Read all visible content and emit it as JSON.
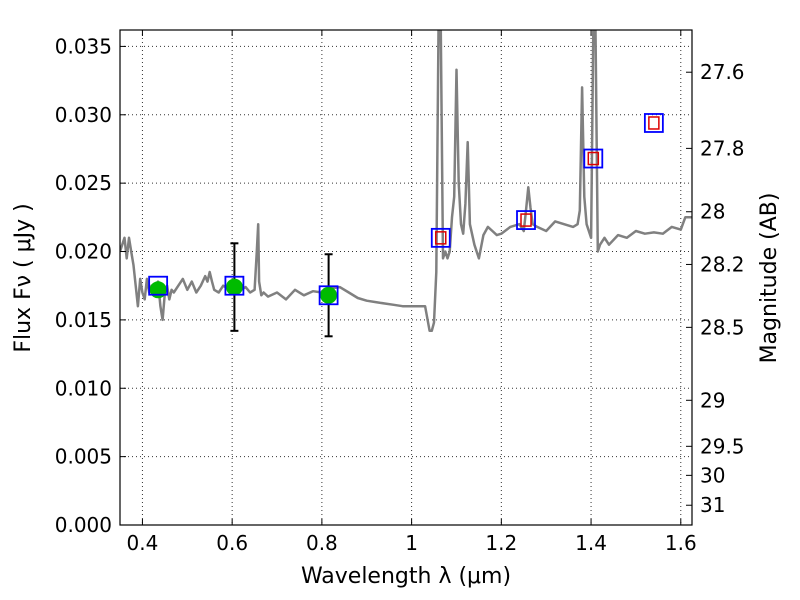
{
  "chart_data": {
    "type": "scatter",
    "xlabel": "Wavelength  λ (μm)",
    "ylabel": "Flux  Fν  ( μJy )",
    "y2label": "Magnitude (AB)",
    "xlim": [
      0.35,
      1.625
    ],
    "ylim": [
      0.0,
      0.0362
    ],
    "grid": true,
    "x_ticks": [
      "0.4",
      "0.6",
      "0.8",
      "1",
      "1.2",
      "1.4",
      "1.6"
    ],
    "x_tick_values": [
      0.4,
      0.6,
      0.8,
      1.0,
      1.2,
      1.4,
      1.6
    ],
    "y_ticks": [
      "0.000",
      "0.005",
      "0.010",
      "0.015",
      "0.020",
      "0.025",
      "0.030",
      "0.035"
    ],
    "y_tick_values": [
      0.0,
      0.005,
      0.01,
      0.015,
      0.02,
      0.025,
      0.03,
      0.035
    ],
    "mag_ticks": [
      "27.6",
      "27.8",
      "28",
      "28.2",
      "28.5",
      "29",
      "29.5",
      "30",
      "31"
    ],
    "mag_values": [
      27.6,
      27.8,
      28.0,
      28.2,
      28.5,
      29.0,
      29.5,
      30.0,
      31.0
    ],
    "colors": {
      "spectrum": "#808080",
      "observed_point": "#00bb00",
      "model_box": "#0000ff",
      "model_inner_box": "#dd0000"
    },
    "series": [
      {
        "name": "",
        "kind": "spectrum",
        "x": [
          0.35,
          0.36,
          0.365,
          0.37,
          0.375,
          0.38,
          0.385,
          0.39,
          0.395,
          0.4,
          0.405,
          0.41,
          0.415,
          0.42,
          0.425,
          0.43,
          0.435,
          0.44,
          0.445,
          0.45,
          0.455,
          0.46,
          0.465,
          0.47,
          0.48,
          0.49,
          0.5,
          0.51,
          0.52,
          0.53,
          0.54,
          0.545,
          0.55,
          0.555,
          0.56,
          0.57,
          0.58,
          0.59,
          0.6,
          0.61,
          0.62,
          0.63,
          0.64,
          0.65,
          0.655,
          0.658,
          0.66,
          0.665,
          0.67,
          0.68,
          0.7,
          0.72,
          0.74,
          0.76,
          0.78,
          0.8,
          0.82,
          0.84,
          0.86,
          0.88,
          0.9,
          0.92,
          0.94,
          0.96,
          0.98,
          1.0,
          1.03,
          1.04,
          1.045,
          1.05,
          1.055,
          1.06,
          1.065,
          1.07,
          1.075,
          1.08,
          1.085,
          1.09,
          1.095,
          1.1,
          1.105,
          1.11,
          1.115,
          1.12,
          1.125,
          1.13,
          1.14,
          1.15,
          1.16,
          1.17,
          1.18,
          1.19,
          1.2,
          1.22,
          1.24,
          1.25,
          1.255,
          1.26,
          1.265,
          1.27,
          1.28,
          1.3,
          1.32,
          1.34,
          1.36,
          1.37,
          1.375,
          1.38,
          1.385,
          1.39,
          1.4,
          1.405,
          1.41,
          1.415,
          1.42,
          1.43,
          1.44,
          1.46,
          1.48,
          1.5,
          1.52,
          1.54,
          1.56,
          1.58,
          1.6,
          1.61,
          1.625
        ],
        "y": [
          0.02,
          0.021,
          0.0195,
          0.021,
          0.02,
          0.019,
          0.0175,
          0.016,
          0.018,
          0.017,
          0.0165,
          0.018,
          0.017,
          0.0175,
          0.017,
          0.0175,
          0.0178,
          0.016,
          0.015,
          0.017,
          0.0175,
          0.0165,
          0.0172,
          0.017,
          0.0175,
          0.018,
          0.0172,
          0.0178,
          0.017,
          0.0175,
          0.0182,
          0.0178,
          0.0185,
          0.0178,
          0.0172,
          0.017,
          0.0175,
          0.0173,
          0.0172,
          0.0175,
          0.0172,
          0.0174,
          0.017,
          0.0172,
          0.02,
          0.022,
          0.0178,
          0.0168,
          0.017,
          0.0167,
          0.017,
          0.0165,
          0.0172,
          0.0168,
          0.0171,
          0.017,
          0.0173,
          0.0174,
          0.017,
          0.0166,
          0.0164,
          0.0163,
          0.0162,
          0.0161,
          0.016,
          0.016,
          0.016,
          0.0142,
          0.0142,
          0.0148,
          0.0185,
          0.0362,
          0.0362,
          0.0195,
          0.02,
          0.0195,
          0.02,
          0.0225,
          0.024,
          0.0333,
          0.025,
          0.022,
          0.0213,
          0.0235,
          0.028,
          0.022,
          0.0205,
          0.0195,
          0.0212,
          0.0218,
          0.0215,
          0.0212,
          0.0213,
          0.0218,
          0.022,
          0.0215,
          0.023,
          0.0247,
          0.0232,
          0.022,
          0.0218,
          0.0215,
          0.0222,
          0.022,
          0.0218,
          0.022,
          0.023,
          0.032,
          0.024,
          0.022,
          0.021,
          0.0362,
          0.0362,
          0.02,
          0.0205,
          0.021,
          0.0205,
          0.0212,
          0.021,
          0.0215,
          0.0213,
          0.0214,
          0.0213,
          0.0218,
          0.0216,
          0.0225,
          0.0225
        ]
      },
      {
        "name": "",
        "kind": "observed",
        "x": [
          0.435,
          0.605,
          0.815
        ],
        "y": [
          0.0172,
          0.0174,
          0.0168
        ],
        "yerr": [
          null,
          0.0032,
          0.003
        ]
      },
      {
        "name": "",
        "kind": "model",
        "x": [
          0.435,
          0.605,
          0.815,
          1.065,
          1.255,
          1.405,
          1.54
        ],
        "y": [
          0.0175,
          0.0175,
          0.0168,
          0.021,
          0.0223,
          0.0268,
          0.0294
        ],
        "inner_box": [
          false,
          false,
          false,
          true,
          true,
          true,
          true
        ]
      }
    ]
  }
}
